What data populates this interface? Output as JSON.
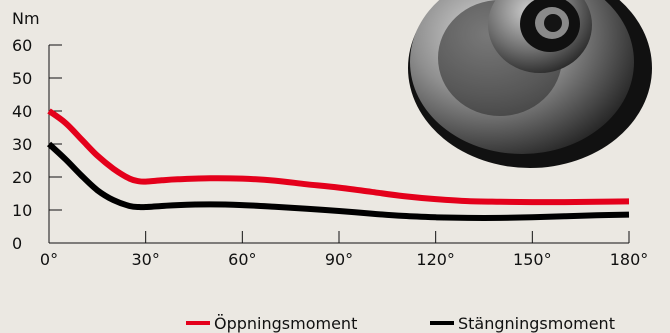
{
  "chart_data": {
    "type": "line",
    "title": "",
    "xlabel": "",
    "ylabel": "Nm",
    "xlim": [
      0,
      180
    ],
    "ylim": [
      0,
      60
    ],
    "grid": false,
    "legend_position": "bottom-right",
    "x_ticks": [
      {
        "value": 0,
        "label": "0°"
      },
      {
        "value": 30,
        "label": "30°"
      },
      {
        "value": 60,
        "label": "60°"
      },
      {
        "value": 90,
        "label": "90°"
      },
      {
        "value": 120,
        "label": "120°"
      },
      {
        "value": 150,
        "label": "150°"
      },
      {
        "value": 180,
        "label": "180°"
      }
    ],
    "y_ticks": [
      {
        "value": 0,
        "label": "0"
      },
      {
        "value": 10,
        "label": "10"
      },
      {
        "value": 20,
        "label": "20"
      },
      {
        "value": 30,
        "label": "30"
      },
      {
        "value": 40,
        "label": "40"
      },
      {
        "value": 50,
        "label": "50"
      },
      {
        "value": 60,
        "label": "60"
      }
    ],
    "series": [
      {
        "name": "Öppningsmoment",
        "color": "#e4001b",
        "x": [
          0,
          5,
          10,
          15,
          20,
          25,
          28,
          30,
          35,
          40,
          50,
          60,
          70,
          80,
          90,
          100,
          110,
          120,
          130,
          140,
          150,
          160,
          170,
          180
        ],
        "y": [
          40,
          36.5,
          31.5,
          26.5,
          22.5,
          19.5,
          18.7,
          18.6,
          19.0,
          19.3,
          19.6,
          19.5,
          18.9,
          17.8,
          16.8,
          15.5,
          14.2,
          13.3,
          12.7,
          12.5,
          12.4,
          12.4,
          12.5,
          12.6
        ]
      },
      {
        "name": "Stängningsmoment",
        "color": "#000000",
        "x": [
          0,
          5,
          10,
          15,
          20,
          25,
          28,
          30,
          35,
          40,
          50,
          60,
          70,
          80,
          90,
          100,
          110,
          120,
          130,
          140,
          150,
          160,
          170,
          180
        ],
        "y": [
          30,
          25.5,
          20.5,
          16,
          13,
          11.2,
          10.9,
          10.9,
          11.2,
          11.5,
          11.7,
          11.5,
          11,
          10.4,
          9.7,
          8.9,
          8.2,
          7.8,
          7.6,
          7.6,
          7.8,
          8.1,
          8.4,
          8.6
        ]
      }
    ]
  },
  "image": {
    "name": "door-closer-pivot-photo"
  }
}
